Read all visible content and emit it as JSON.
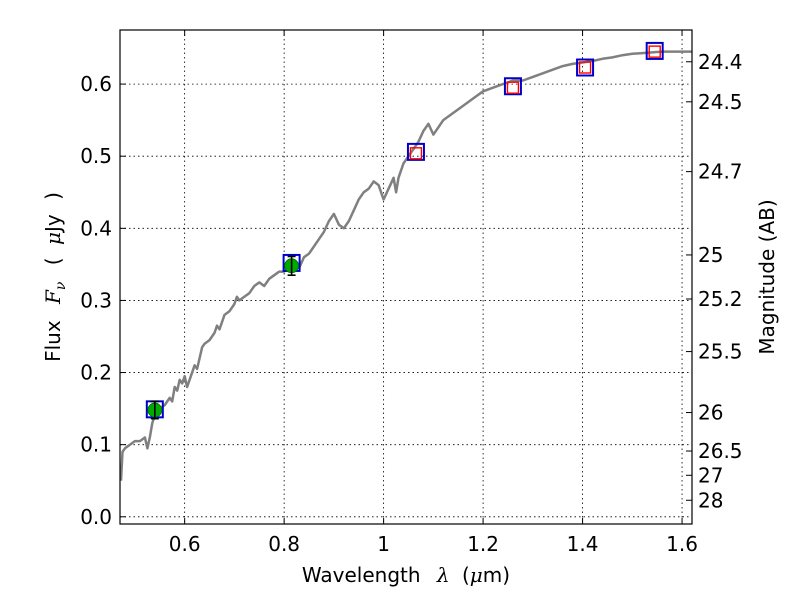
{
  "chart_data": {
    "type": "line",
    "title": "",
    "xlabel": {
      "text": "Wavelength",
      "symbol": "λ",
      "unit_open": "(",
      "unit_mu": "μ",
      "unit_rest": "m)"
    },
    "ylabel": {
      "text": "Flux",
      "symbol_F": "F",
      "symbol_sub": "ν",
      "paren_open": "(",
      "unit_mu": "μ",
      "unit_rest": "Jy",
      "paren_close": ")"
    },
    "y2label": "Magnitude (AB)",
    "xlim": [
      0.47,
      1.62
    ],
    "ylim": [
      -0.01,
      0.675
    ],
    "grid": true,
    "xticks": [
      {
        "value": 0.6,
        "label": "0.6"
      },
      {
        "value": 0.8,
        "label": "0.8"
      },
      {
        "value": 1.0,
        "label": "1"
      },
      {
        "value": 1.2,
        "label": "1.2"
      },
      {
        "value": 1.4,
        "label": "1.4"
      },
      {
        "value": 1.6,
        "label": "1.6"
      }
    ],
    "yticks": [
      {
        "value": 0.0,
        "label": "0.0"
      },
      {
        "value": 0.1,
        "label": "0.1"
      },
      {
        "value": 0.2,
        "label": "0.2"
      },
      {
        "value": 0.3,
        "label": "0.3"
      },
      {
        "value": 0.4,
        "label": "0.4"
      },
      {
        "value": 0.5,
        "label": "0.5"
      },
      {
        "value": 0.6,
        "label": "0.6"
      }
    ],
    "magnitude_ticks": [
      {
        "value": 24.4,
        "label": "24.4"
      },
      {
        "value": 24.5,
        "label": "24.5"
      },
      {
        "value": 24.7,
        "label": "24.7"
      },
      {
        "value": 25.0,
        "label": "25"
      },
      {
        "value": 25.2,
        "label": "25.2"
      },
      {
        "value": 25.5,
        "label": "25.5"
      },
      {
        "value": 26.0,
        "label": "26"
      },
      {
        "value": 26.5,
        "label": "26.5"
      },
      {
        "value": 27.0,
        "label": "27"
      },
      {
        "value": 28.0,
        "label": "28"
      }
    ],
    "series": [
      {
        "name": "model_sed",
        "kind": "line",
        "color": "#808080",
        "x": [
          0.472,
          0.475,
          0.48,
          0.49,
          0.5,
          0.51,
          0.52,
          0.525,
          0.53,
          0.535,
          0.54,
          0.55,
          0.56,
          0.57,
          0.575,
          0.58,
          0.585,
          0.59,
          0.595,
          0.6,
          0.605,
          0.61,
          0.62,
          0.625,
          0.63,
          0.635,
          0.64,
          0.65,
          0.66,
          0.665,
          0.67,
          0.68,
          0.69,
          0.7,
          0.705,
          0.71,
          0.72,
          0.73,
          0.74,
          0.75,
          0.76,
          0.77,
          0.78,
          0.79,
          0.8,
          0.81,
          0.82,
          0.83,
          0.84,
          0.85,
          0.86,
          0.87,
          0.88,
          0.89,
          0.9,
          0.91,
          0.92,
          0.93,
          0.94,
          0.95,
          0.96,
          0.97,
          0.98,
          0.99,
          1.0,
          1.01,
          1.02,
          1.025,
          1.03,
          1.04,
          1.05,
          1.06,
          1.07,
          1.08,
          1.09,
          1.1,
          1.12,
          1.14,
          1.16,
          1.18,
          1.2,
          1.22,
          1.24,
          1.26,
          1.28,
          1.3,
          1.32,
          1.34,
          1.36,
          1.38,
          1.4,
          1.42,
          1.44,
          1.46,
          1.48,
          1.5,
          1.52,
          1.54,
          1.56,
          1.58,
          1.6,
          1.62
        ],
        "y": [
          0.05,
          0.09,
          0.095,
          0.1,
          0.105,
          0.105,
          0.11,
          0.095,
          0.11,
          0.13,
          0.14,
          0.15,
          0.155,
          0.165,
          0.16,
          0.18,
          0.175,
          0.19,
          0.185,
          0.195,
          0.18,
          0.19,
          0.21,
          0.205,
          0.22,
          0.235,
          0.24,
          0.245,
          0.255,
          0.265,
          0.26,
          0.28,
          0.285,
          0.295,
          0.305,
          0.3,
          0.305,
          0.31,
          0.32,
          0.325,
          0.32,
          0.33,
          0.335,
          0.34,
          0.34,
          0.345,
          0.35,
          0.345,
          0.36,
          0.365,
          0.375,
          0.385,
          0.395,
          0.41,
          0.42,
          0.405,
          0.4,
          0.41,
          0.425,
          0.44,
          0.45,
          0.455,
          0.465,
          0.46,
          0.44,
          0.455,
          0.47,
          0.45,
          0.47,
          0.49,
          0.5,
          0.51,
          0.52,
          0.535,
          0.545,
          0.53,
          0.55,
          0.56,
          0.57,
          0.58,
          0.59,
          0.595,
          0.6,
          0.605,
          0.605,
          0.61,
          0.615,
          0.62,
          0.625,
          0.628,
          0.63,
          0.632,
          0.635,
          0.637,
          0.64,
          0.642,
          0.643,
          0.644,
          0.645,
          0.645,
          0.645,
          0.645
        ]
      },
      {
        "name": "model_photometry",
        "kind": "square",
        "color": "#0000cc",
        "x": [
          0.54,
          0.815,
          1.065,
          1.26,
          1.405,
          1.545
        ],
        "y": [
          0.149,
          0.352,
          0.506,
          0.597,
          0.623,
          0.646
        ]
      },
      {
        "name": "observed_detections",
        "kind": "errorbar_circle",
        "color": "#00aa00",
        "x": [
          0.54,
          0.815
        ],
        "y": [
          0.148,
          0.348
        ],
        "yerr": [
          0.012,
          0.013
        ]
      },
      {
        "name": "upper_limits",
        "kind": "open_square",
        "color": "#ff0000",
        "x": [
          1.065,
          1.26,
          1.405,
          1.545
        ],
        "y": [
          0.504,
          0.595,
          0.623,
          0.645
        ]
      }
    ]
  }
}
